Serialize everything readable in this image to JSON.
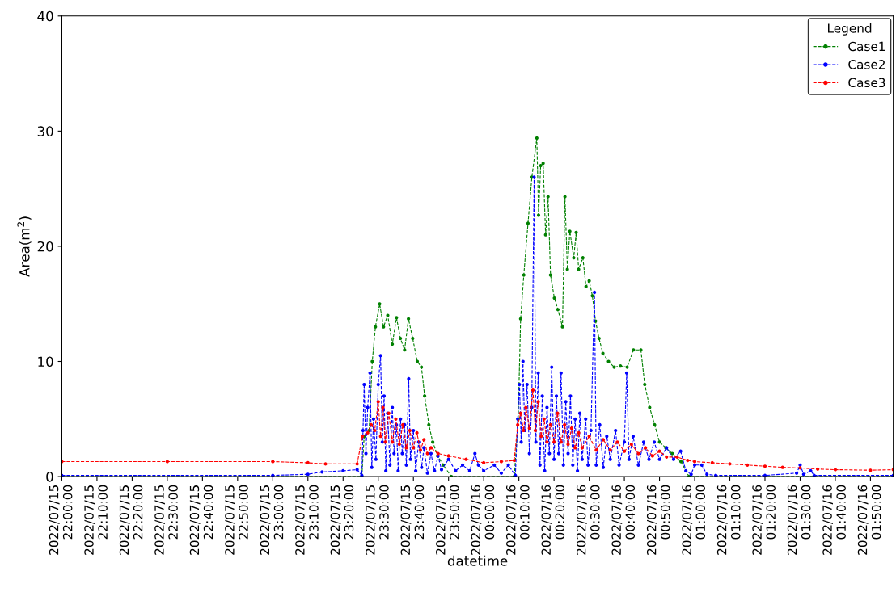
{
  "chart_data": {
    "type": "line",
    "xlabel": "datetime",
    "ylabel": "Area(m$^{2}$)",
    "legend_title": "Legend",
    "legend": "top right",
    "grid": false,
    "marker": "circle",
    "line_style": "dashed",
    "xlim": [
      "2022-07-15T22:00",
      "2022-07-16T01:56:30"
    ],
    "ylim": [
      0,
      40
    ],
    "yticks": [
      0,
      10,
      20,
      30,
      40
    ],
    "xticks": [
      {
        "value": "2022-07-15T22:00",
        "label": "2022/07/15\n22:00:00"
      },
      {
        "value": "2022-07-15T22:10",
        "label": "2022/07/15\n22:10:00"
      },
      {
        "value": "2022-07-15T22:20",
        "label": "2022/07/15\n22:20:00"
      },
      {
        "value": "2022-07-15T22:30",
        "label": "2022/07/15\n22:30:00"
      },
      {
        "value": "2022-07-15T22:40",
        "label": "2022/07/15\n22:40:00"
      },
      {
        "value": "2022-07-15T22:50",
        "label": "2022/07/15\n22:50:00"
      },
      {
        "value": "2022-07-15T23:00",
        "label": "2022/07/15\n23:00:00"
      },
      {
        "value": "2022-07-15T23:10",
        "label": "2022/07/15\n23:10:00"
      },
      {
        "value": "2022-07-15T23:20",
        "label": "2022/07/15\n23:20:00"
      },
      {
        "value": "2022-07-15T23:30",
        "label": "2022/07/15\n23:30:00"
      },
      {
        "value": "2022-07-15T23:40",
        "label": "2022/07/15\n23:40:00"
      },
      {
        "value": "2022-07-15T23:50",
        "label": "2022/07/15\n23:50:00"
      },
      {
        "value": "2022-07-16T00:00",
        "label": "2022/07/16\n00:00:00"
      },
      {
        "value": "2022-07-16T00:10",
        "label": "2022/07/16\n00:10:00"
      },
      {
        "value": "2022-07-16T00:20",
        "label": "2022/07/16\n00:20:00"
      },
      {
        "value": "2022-07-16T00:30",
        "label": "2022/07/16\n00:30:00"
      },
      {
        "value": "2022-07-16T00:40",
        "label": "2022/07/16\n00:40:00"
      },
      {
        "value": "2022-07-16T00:50",
        "label": "2022/07/16\n00:50:00"
      },
      {
        "value": "2022-07-16T01:00",
        "label": "2022/07/16\n01:00:00"
      },
      {
        "value": "2022-07-16T01:10",
        "label": "2022/07/16\n01:10:00"
      },
      {
        "value": "2022-07-16T01:20",
        "label": "2022/07/16\n01:20:00"
      },
      {
        "value": "2022-07-16T01:30",
        "label": "2022/07/16\n01:30:00"
      },
      {
        "value": "2022-07-16T01:40",
        "label": "2022/07/16\n01:40:00"
      },
      {
        "value": "2022-07-16T01:50",
        "label": "2022/07/16\n01:50:00"
      }
    ],
    "series": [
      {
        "name": "Case1",
        "color": "#008000",
        "x": [
          "2022-07-15T22:00",
          "2022-07-15T23:25:20",
          "2022-07-15T23:26",
          "2022-07-15T23:27:24",
          "2022-07-15T23:28:18",
          "2022-07-15T23:29:12",
          "2022-07-15T23:30:24",
          "2022-07-15T23:31:30",
          "2022-07-15T23:32:42",
          "2022-07-15T23:34",
          "2022-07-15T23:35:12",
          "2022-07-15T23:36:18",
          "2022-07-15T23:37:30",
          "2022-07-15T23:38:36",
          "2022-07-15T23:39:48",
          "2022-07-15T23:41:06",
          "2022-07-15T23:42:18",
          "2022-07-15T23:43:12",
          "2022-07-15T23:44:24",
          "2022-07-15T23:45:30",
          "2022-07-15T23:46:54",
          "2022-07-15T23:48:30",
          "2022-07-15T23:50:48",
          "2022-07-16T00:08:42",
          "2022-07-16T00:09:48",
          "2022-07-16T00:10:30",
          "2022-07-16T00:11:24",
          "2022-07-16T00:12:36",
          "2022-07-16T00:13:42",
          "2022-07-16T00:15:06",
          "2022-07-16T00:15:36",
          "2022-07-16T00:16:12",
          "2022-07-16T00:16:54",
          "2022-07-16T00:17:36",
          "2022-07-16T00:18:18",
          "2022-07-16T00:19",
          "2022-07-16T00:20:06",
          "2022-07-16T00:21:06",
          "2022-07-16T00:22:24",
          "2022-07-16T00:23:06",
          "2022-07-16T00:23:48",
          "2022-07-16T00:24:30",
          "2022-07-16T00:25:36",
          "2022-07-16T00:26:18",
          "2022-07-16T00:27",
          "2022-07-16T00:28:12",
          "2022-07-16T00:29:06",
          "2022-07-16T00:30",
          "2022-07-16T00:30:54",
          "2022-07-16T00:31:48",
          "2022-07-16T00:32:48",
          "2022-07-16T00:33:54",
          "2022-07-16T00:35:30",
          "2022-07-16T00:37:06",
          "2022-07-16T00:38:54",
          "2022-07-16T00:40:48",
          "2022-07-16T00:42:36",
          "2022-07-16T00:44:42",
          "2022-07-16T00:45:48",
          "2022-07-16T00:47:12",
          "2022-07-16T00:48:36",
          "2022-07-16T00:50",
          "2022-07-16T00:51:48",
          "2022-07-16T00:53:36",
          "2022-07-16T00:56:06",
          "2022-07-16T00:58:24",
          "2022-07-16T01:56:30"
        ],
        "values": [
          0,
          0,
          3.5,
          4,
          10,
          13,
          15,
          13,
          14,
          11.5,
          13.8,
          12,
          11,
          13.7,
          12,
          10,
          9.5,
          7,
          4.5,
          3,
          1.8,
          1,
          0,
          0,
          5,
          13.7,
          17.5,
          22,
          26,
          29.4,
          22.7,
          27,
          27.2,
          21,
          24.3,
          17.5,
          15.5,
          14.5,
          13,
          24.3,
          18,
          21.3,
          19,
          21.2,
          18,
          19,
          16.5,
          17,
          15.7,
          13.5,
          12,
          10.7,
          10,
          9.5,
          9.6,
          9.5,
          11,
          11,
          8,
          6,
          4.5,
          3,
          2.5,
          2,
          1.3,
          0,
          0
        ]
      },
      {
        "name": "Case2",
        "color": "#0000ff",
        "x": [
          "2022-07-15T22:00",
          "2022-07-15T23:00",
          "2022-07-15T23:10",
          "2022-07-15T23:14",
          "2022-07-15T23:20",
          "2022-07-15T23:24",
          "2022-07-15T23:25:20",
          "2022-07-15T23:25:40",
          "2022-07-15T23:26",
          "2022-07-15T23:26:30",
          "2022-07-15T23:27",
          "2022-07-15T23:27:40",
          "2022-07-15T23:28:10",
          "2022-07-15T23:28:40",
          "2022-07-15T23:29:20",
          "2022-07-15T23:30",
          "2022-07-15T23:30:40",
          "2022-07-15T23:31:10",
          "2022-07-15T23:31:40",
          "2022-07-15T23:32:10",
          "2022-07-15T23:32:40",
          "2022-07-15T23:33:20",
          "2022-07-15T23:34",
          "2022-07-15T23:34:30",
          "2022-07-15T23:35:10",
          "2022-07-15T23:35:40",
          "2022-07-15T23:36:20",
          "2022-07-15T23:36:50",
          "2022-07-15T23:37:30",
          "2022-07-15T23:38",
          "2022-07-15T23:38:40",
          "2022-07-15T23:39:10",
          "2022-07-15T23:40",
          "2022-07-15T23:40:40",
          "2022-07-15T23:41:30",
          "2022-07-15T23:42:20",
          "2022-07-15T23:43",
          "2022-07-15T23:44",
          "2022-07-15T23:45",
          "2022-07-15T23:46",
          "2022-07-15T23:47",
          "2022-07-15T23:48",
          "2022-07-15T23:50",
          "2022-07-15T23:52",
          "2022-07-15T23:54",
          "2022-07-15T23:56",
          "2022-07-15T23:57:30",
          "2022-07-15T23:58:30",
          "2022-07-16T00:00",
          "2022-07-16T00:03",
          "2022-07-16T00:05",
          "2022-07-16T00:07",
          "2022-07-16T00:09",
          "2022-07-16T00:09:40",
          "2022-07-16T00:10:10",
          "2022-07-16T00:10:40",
          "2022-07-16T00:11:10",
          "2022-07-16T00:11:40",
          "2022-07-16T00:12:20",
          "2022-07-16T00:13",
          "2022-07-16T00:13:40",
          "2022-07-16T00:14:20",
          "2022-07-16T00:14:50",
          "2022-07-16T00:15:30",
          "2022-07-16T00:16",
          "2022-07-16T00:16:40",
          "2022-07-16T00:17:20",
          "2022-07-16T00:18",
          "2022-07-16T00:18:40",
          "2022-07-16T00:19:20",
          "2022-07-16T00:20",
          "2022-07-16T00:20:40",
          "2022-07-16T00:21:20",
          "2022-07-16T00:22",
          "2022-07-16T00:22:40",
          "2022-07-16T00:23:20",
          "2022-07-16T00:24",
          "2022-07-16T00:24:40",
          "2022-07-16T00:25:20",
          "2022-07-16T00:26",
          "2022-07-16T00:26:40",
          "2022-07-16T00:27:20",
          "2022-07-16T00:28",
          "2022-07-16T00:29",
          "2022-07-16T00:29:40",
          "2022-07-16T00:30:30",
          "2022-07-16T00:31:30",
          "2022-07-16T00:32",
          "2022-07-16T00:33",
          "2022-07-16T00:34",
          "2022-07-16T00:35",
          "2022-07-16T00:36",
          "2022-07-16T00:37:30",
          "2022-07-16T00:38:30",
          "2022-07-16T00:40",
          "2022-07-16T00:40:40",
          "2022-07-16T00:41:20",
          "2022-07-16T00:42:30",
          "2022-07-16T00:44",
          "2022-07-16T00:45:30",
          "2022-07-16T00:47",
          "2022-07-16T00:48:30",
          "2022-07-16T00:50",
          "2022-07-16T00:52",
          "2022-07-16T00:54",
          "2022-07-16T00:56",
          "2022-07-16T00:57:30",
          "2022-07-16T00:59",
          "2022-07-16T01:00",
          "2022-07-16T01:02",
          "2022-07-16T01:03:30",
          "2022-07-16T01:06",
          "2022-07-16T01:20",
          "2022-07-16T01:29",
          "2022-07-16T01:30",
          "2022-07-16T01:31",
          "2022-07-16T01:33",
          "2022-07-16T01:34",
          "2022-07-16T01:56:30"
        ],
        "values": [
          0.1,
          0.1,
          0.2,
          0.4,
          0.5,
          0.6,
          0.1,
          4,
          8,
          2,
          6,
          9,
          0.8,
          5,
          1.5,
          8,
          10.5,
          3,
          7,
          0.5,
          5.5,
          1,
          6,
          2,
          4.5,
          0.5,
          5,
          2,
          4.5,
          1,
          8.5,
          1.5,
          4,
          0.5,
          3,
          0.8,
          2.5,
          0.3,
          2,
          0.5,
          1.8,
          0.6,
          1.5,
          0.5,
          1,
          0.5,
          2,
          1,
          0.5,
          1,
          0.3,
          1,
          0.1,
          5,
          8,
          3,
          10,
          4,
          8,
          2,
          6,
          26,
          3,
          9,
          1,
          7,
          0.5,
          6,
          2,
          9.5,
          1.5,
          7,
          2,
          9,
          1,
          6.5,
          2,
          7,
          1,
          5,
          0.5,
          5.5,
          1.5,
          5,
          1,
          4,
          16,
          1,
          4.5,
          0.8,
          3.5,
          1.5,
          4,
          1,
          3,
          9,
          1.5,
          3.5,
          1,
          3,
          1.5,
          3,
          1.5,
          2.5,
          1.5,
          2.2,
          0.5,
          0.2,
          1,
          1,
          0.2,
          0.1,
          0.1,
          0.3,
          1,
          0.2,
          0.5,
          0.1,
          0.1
        ]
      },
      {
        "name": "Case3",
        "color": "#ff0000",
        "x": [
          "2022-07-15T22:00",
          "2022-07-15T22:30",
          "2022-07-15T23:00",
          "2022-07-15T23:10",
          "2022-07-15T23:15",
          "2022-07-15T23:24",
          "2022-07-15T23:25:30",
          "2022-07-15T23:27",
          "2022-07-15T23:28",
          "2022-07-15T23:29",
          "2022-07-15T23:30",
          "2022-07-15T23:30:40",
          "2022-07-15T23:31:20",
          "2022-07-15T23:32",
          "2022-07-15T23:33",
          "2022-07-15T23:34",
          "2022-07-15T23:35",
          "2022-07-15T23:36",
          "2022-07-15T23:37",
          "2022-07-15T23:38",
          "2022-07-15T23:39",
          "2022-07-15T23:40",
          "2022-07-15T23:41",
          "2022-07-15T23:42",
          "2022-07-15T23:43",
          "2022-07-15T23:44",
          "2022-07-15T23:45",
          "2022-07-15T23:47",
          "2022-07-15T23:50",
          "2022-07-15T23:55",
          "2022-07-16T00:00",
          "2022-07-16T00:05",
          "2022-07-16T00:08:40",
          "2022-07-16T00:09:40",
          "2022-07-16T00:10:30",
          "2022-07-16T00:11:20",
          "2022-07-16T00:12",
          "2022-07-16T00:13",
          "2022-07-16T00:14",
          "2022-07-16T00:14:40",
          "2022-07-16T00:15:30",
          "2022-07-16T00:16:20",
          "2022-07-16T00:17:10",
          "2022-07-16T00:18",
          "2022-07-16T00:19",
          "2022-07-16T00:20",
          "2022-07-16T00:21",
          "2022-07-16T00:22",
          "2022-07-16T00:23",
          "2022-07-16T00:24",
          "2022-07-16T00:25",
          "2022-07-16T00:26",
          "2022-07-16T00:27",
          "2022-07-16T00:28",
          "2022-07-16T00:30",
          "2022-07-16T00:32",
          "2022-07-16T00:34",
          "2022-07-16T00:36",
          "2022-07-16T00:38",
          "2022-07-16T00:40",
          "2022-07-16T00:42",
          "2022-07-16T00:44",
          "2022-07-16T00:46",
          "2022-07-16T00:48",
          "2022-07-16T00:50",
          "2022-07-16T00:52",
          "2022-07-16T00:55",
          "2022-07-16T00:58",
          "2022-07-16T01:00",
          "2022-07-16T01:05",
          "2022-07-16T01:10",
          "2022-07-16T01:15",
          "2022-07-16T01:20",
          "2022-07-16T01:25",
          "2022-07-16T01:30",
          "2022-07-16T01:35",
          "2022-07-16T01:40",
          "2022-07-16T01:50",
          "2022-07-16T01:56:30"
        ],
        "values": [
          1.3,
          1.3,
          1.3,
          1.2,
          1.1,
          1.1,
          3.5,
          3.8,
          4.5,
          4,
          6.5,
          3.5,
          6,
          3,
          5.5,
          3,
          5,
          2.8,
          4.5,
          2.5,
          4,
          2.5,
          3.8,
          2.3,
          3.2,
          2,
          2.5,
          2,
          1.8,
          1.5,
          1.2,
          1.3,
          1.4,
          4.5,
          5.5,
          4,
          6,
          4.2,
          7.5,
          4,
          6.5,
          3.5,
          5,
          3,
          4.5,
          3,
          5.5,
          3,
          4.5,
          2.8,
          4.2,
          2.5,
          3.8,
          2.5,
          3.5,
          2.3,
          3.2,
          2.3,
          3,
          2.2,
          2.8,
          2,
          2.5,
          1.8,
          2.2,
          1.7,
          1.7,
          1.4,
          1.3,
          1.2,
          1.1,
          1.0,
          0.9,
          0.8,
          0.75,
          0.65,
          0.6,
          0.55,
          0.6
        ]
      }
    ]
  }
}
